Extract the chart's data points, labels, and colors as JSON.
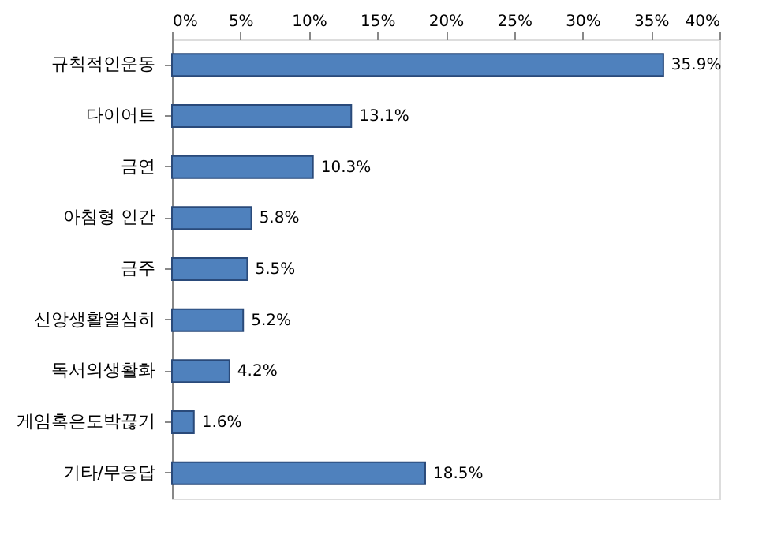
{
  "chart_data": {
    "type": "bar",
    "orientation": "horizontal",
    "categories": [
      "규칙적인운동",
      "다이어트",
      "금연",
      "아침형 인간",
      "금주",
      "신앙생활열심히",
      "독서의생활화",
      "게임혹은도박끊기",
      "기타/무응답"
    ],
    "values": [
      35.9,
      13.1,
      10.3,
      5.8,
      5.5,
      5.2,
      4.2,
      1.6,
      18.5
    ],
    "value_labels": [
      "35.9%",
      "13.1%",
      "10.3%",
      "5.8%",
      "5.5%",
      "5.2%",
      "4.2%",
      "1.6%",
      "18.5%"
    ],
    "color": "#4f81bd",
    "xlim": [
      0,
      40
    ],
    "xticks": [
      {
        "value": 0,
        "label": "0%"
      },
      {
        "value": 5,
        "label": "5%"
      },
      {
        "value": 10,
        "label": "10%"
      },
      {
        "value": 15,
        "label": "15%"
      },
      {
        "value": 20,
        "label": "20%"
      },
      {
        "value": 25,
        "label": "25%"
      },
      {
        "value": 30,
        "label": "30%"
      },
      {
        "value": 35,
        "label": "35%"
      },
      {
        "value": 40,
        "label": "40%"
      }
    ],
    "grid": false
  }
}
